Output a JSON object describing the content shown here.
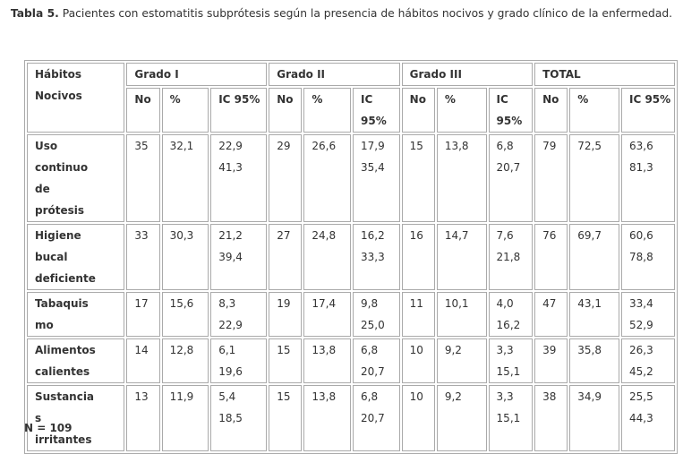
{
  "caption": {
    "label": "Tabla 5.",
    "text": "Pacientes con estomatitis subprótesis según la presencia de hábitos nocivos y grado clínico de la enfermedad."
  },
  "table": {
    "row_header": "Hábitos Nocivos",
    "groups": [
      "Grado I",
      "Grado II",
      "Grado III",
      "TOTAL"
    ],
    "subheaders": [
      "No",
      "%",
      "IC 95%"
    ],
    "rows": [
      {
        "label": "Uso continuo de prótesis",
        "groups": [
          {
            "no": "35",
            "pct": "32,1",
            "ic": [
              "22,9",
              "41,3"
            ]
          },
          {
            "no": "29",
            "pct": "26,6",
            "ic": [
              "17,9",
              "35,4"
            ]
          },
          {
            "no": "15",
            "pct": "13,8",
            "ic": [
              "6,8",
              "20,7"
            ]
          },
          {
            "no": "79",
            "pct": "72,5",
            "ic": [
              "63,6",
              "81,3"
            ]
          }
        ]
      },
      {
        "label": "Higiene bucal deficiente",
        "groups": [
          {
            "no": "33",
            "pct": "30,3",
            "ic": [
              "21,2",
              "39,4"
            ]
          },
          {
            "no": "27",
            "pct": "24,8",
            "ic": [
              "16,2",
              "33,3"
            ]
          },
          {
            "no": "16",
            "pct": "14,7",
            "ic": [
              "7,6",
              "21,8"
            ]
          },
          {
            "no": "76",
            "pct": "69,7",
            "ic": [
              "60,6",
              "78,8"
            ]
          }
        ]
      },
      {
        "label": "Tabaquismo",
        "groups": [
          {
            "no": "17",
            "pct": "15,6",
            "ic": [
              "8,3",
              "22,9"
            ]
          },
          {
            "no": "19",
            "pct": "17,4",
            "ic": [
              "9,8",
              "25,0"
            ]
          },
          {
            "no": "11",
            "pct": "10,1",
            "ic": [
              "4,0",
              "16,2"
            ]
          },
          {
            "no": "47",
            "pct": "43,1",
            "ic": [
              "33,4",
              "52,9"
            ]
          }
        ]
      },
      {
        "label": "Alimentos calientes",
        "groups": [
          {
            "no": "14",
            "pct": "12,8",
            "ic": [
              "6,1",
              "19,6"
            ]
          },
          {
            "no": "15",
            "pct": "13,8",
            "ic": [
              "6,8",
              "20,7"
            ]
          },
          {
            "no": "10",
            "pct": "9,2",
            "ic": [
              "3,3",
              "15,1"
            ]
          },
          {
            "no": "39",
            "pct": "35,8",
            "ic": [
              "26,3",
              "45,2"
            ]
          }
        ]
      },
      {
        "label": "Sustancias irritantes",
        "groups": [
          {
            "no": "13",
            "pct": "11,9",
            "ic": [
              "5,4",
              "18,5"
            ]
          },
          {
            "no": "15",
            "pct": "13,8",
            "ic": [
              "6,8",
              "20,7"
            ]
          },
          {
            "no": "10",
            "pct": "9,2",
            "ic": [
              "3,3",
              "15,1"
            ]
          },
          {
            "no": "38",
            "pct": "34,9",
            "ic": [
              "25,5",
              "44,3"
            ]
          }
        ]
      }
    ]
  },
  "note": "N = 109"
}
